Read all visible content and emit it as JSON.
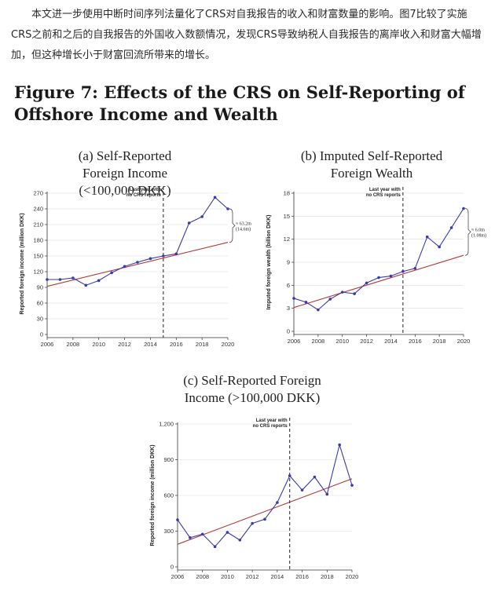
{
  "intro": {
    "text": "本文进一步使用中断时间序列法量化了CRS对自我报告的收入和财富数量的影响。图7比较了实施CRS之前和之后的自我报告的外国收入数额情况，发现CRS导致纳税人自我报告的离岸收入和财富大幅增加，但这种增长小于财富回流所带来的增长。"
  },
  "figure": {
    "title": "Figure 7: Effects of the CRS on Self-Reporting of Offshore Income and Wealth"
  },
  "colors": {
    "series": "#3a3aa8",
    "trend": "#b23a3a",
    "axis": "#333333",
    "grid": "#dddddd"
  },
  "chart_data": [
    {
      "type": "line",
      "title": "(a) Self-Reported Foreign Income (<100,000 DKK)",
      "xlabel": "",
      "ylabel": "Reported foreign income (million DKK)",
      "xlim": [
        2006,
        2020
      ],
      "ylim": [
        0,
        270
      ],
      "xticks": [
        2006,
        2008,
        2010,
        2012,
        2014,
        2016,
        2018,
        2020
      ],
      "yticks": [
        0,
        30,
        60,
        90,
        120,
        150,
        180,
        210,
        240,
        270
      ],
      "ytick_labels": [
        "0",
        "30",
        "60",
        "90",
        "120",
        "150",
        "180",
        "210",
        "240",
        "270"
      ],
      "x": [
        2006,
        2007,
        2008,
        2009,
        2010,
        2011,
        2012,
        2013,
        2014,
        2015,
        2016,
        2017,
        2018,
        2019,
        2020
      ],
      "values": [
        105,
        105,
        108,
        94,
        103,
        118,
        130,
        138,
        145,
        150,
        154,
        213,
        225,
        262,
        240
      ],
      "trend": {
        "x": [
          2006,
          2020
        ],
        "y": [
          92,
          176
        ]
      },
      "cutoff_x": 2015,
      "cutoff_label": [
        "Last year with",
        "no CRS reports"
      ],
      "bracket": {
        "x": 2020,
        "from": 176,
        "to": 240,
        "label": [
          "≈ 63.2m",
          "(14.6m)"
        ]
      },
      "grid": true
    },
    {
      "type": "line",
      "title": "(b) Imputed Self-Reported Foreign Wealth",
      "xlabel": "",
      "ylabel": "Imputed foreign wealth (billion DKK)",
      "xlim": [
        2006,
        2020
      ],
      "ylim": [
        0,
        18
      ],
      "xticks": [
        2006,
        2008,
        2010,
        2012,
        2014,
        2016,
        2018,
        2020
      ],
      "yticks": [
        0,
        3,
        6,
        9,
        12,
        15,
        18
      ],
      "ytick_labels": [
        "0",
        "3",
        "6",
        "9",
        "12",
        "15",
        "18"
      ],
      "x": [
        2006,
        2007,
        2008,
        2009,
        2010,
        2011,
        2012,
        2013,
        2014,
        2015,
        2016,
        2017,
        2018,
        2019,
        2020
      ],
      "values": [
        4.3,
        3.8,
        2.8,
        4.2,
        5.1,
        4.9,
        6.3,
        7.0,
        7.2,
        7.8,
        8.2,
        12.3,
        11.0,
        13.5,
        16.0
      ],
      "trend": {
        "x": [
          2006,
          2020
        ],
        "y": [
          3.1,
          9.9
        ]
      },
      "cutoff_x": 2015,
      "cutoff_label": [
        "Last year with",
        "no CRS reports"
      ],
      "bracket": {
        "x": 2020,
        "from": 9.9,
        "to": 16.0,
        "label": [
          "≈ 6.0m",
          "(1.08m)"
        ]
      },
      "grid": true
    },
    {
      "type": "line",
      "title": "(c) Self-Reported Foreign Income (>100,000 DKK)",
      "xlabel": "",
      "ylabel": "Reported foreign income (million DKK)",
      "xlim": [
        2006,
        2020
      ],
      "ylim": [
        0,
        1200
      ],
      "xticks": [
        2006,
        2008,
        2010,
        2012,
        2014,
        2016,
        2018,
        2020
      ],
      "yticks": [
        0,
        300,
        600,
        900,
        1200
      ],
      "ytick_labels": [
        "0",
        "300",
        "600",
        "900",
        "1,200"
      ],
      "x": [
        2006,
        2007,
        2008,
        2009,
        2010,
        2011,
        2012,
        2013,
        2014,
        2015,
        2016,
        2017,
        2018,
        2019,
        2020
      ],
      "values": [
        395,
        245,
        275,
        170,
        290,
        225,
        365,
        400,
        540,
        765,
        645,
        755,
        610,
        1025,
        685
      ],
      "trend": {
        "x": [
          2006,
          2020
        ],
        "y": [
          190,
          740
        ]
      },
      "cutoff_x": 2015,
      "cutoff_label": [
        "Last year with",
        "no CRS reports"
      ],
      "grid": true
    }
  ]
}
